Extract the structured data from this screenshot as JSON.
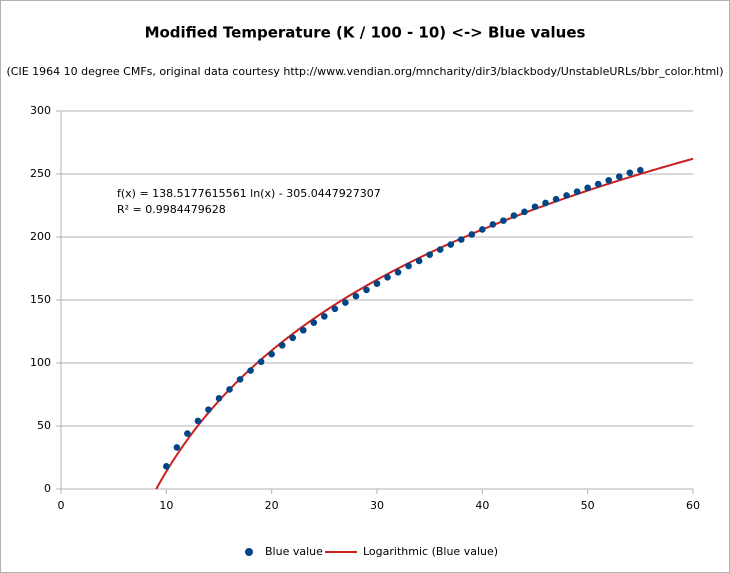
{
  "chart_data": {
    "type": "scatter",
    "title": "Modified Temperature (K / 100 - 10) <-> Blue values",
    "subtitle": "(CIE 1964 10 degree CMFs, original data courtesy http://www.vendian.org/mncharity/dir3/blackbody/UnstableURLs/bbr_color.html)",
    "x": [
      10,
      11,
      12,
      13,
      14,
      15,
      16,
      17,
      18,
      19,
      20,
      21,
      22,
      23,
      24,
      25,
      26,
      27,
      28,
      29,
      30,
      31,
      32,
      33,
      34,
      35,
      36,
      37,
      38,
      39,
      40,
      41,
      42,
      43,
      44,
      45,
      46,
      47,
      48,
      49,
      50,
      51,
      52,
      53,
      54,
      55
    ],
    "series": [
      {
        "name": "Blue value",
        "color": "#004586",
        "values": [
          18,
          33,
          44,
          54,
          63,
          72,
          79,
          87,
          94,
          101,
          107,
          114,
          120,
          126,
          132,
          137,
          143,
          148,
          153,
          158,
          163,
          168,
          172,
          177,
          181,
          186,
          190,
          194,
          198,
          202,
          206,
          210,
          213,
          217,
          220,
          224,
          227,
          230,
          233,
          236,
          239,
          242,
          245,
          248,
          251,
          253
        ]
      }
    ],
    "trendline": {
      "name": "Logarithmic (Blue value)",
      "color": "#c9211e",
      "a": 138.5177615561,
      "b": -305.0447927307,
      "equation": "f(x) = 138.5177615561 ln(x) - 305.0447927307",
      "r2": "R² = 0.9984479628"
    },
    "xlim": [
      0,
      60
    ],
    "xticks": [
      0,
      10,
      20,
      30,
      40,
      50,
      60
    ],
    "ylim": [
      0,
      300
    ],
    "yticks": [
      0,
      50,
      100,
      150,
      200,
      250,
      300
    ],
    "grid": true
  }
}
